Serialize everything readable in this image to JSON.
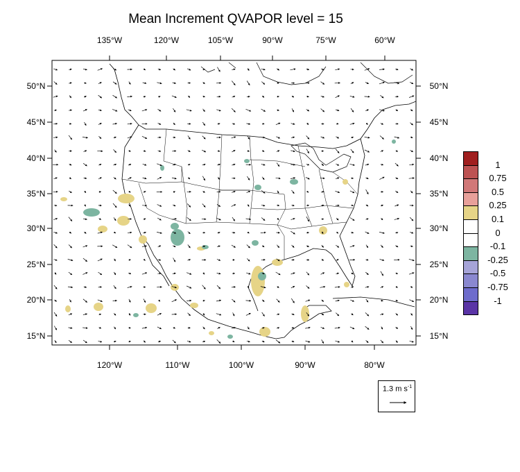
{
  "title": "Mean Increment QVAPOR level = 15",
  "map": {
    "top_longitudes": [
      "135°W",
      "120°W",
      "105°W",
      "90°W",
      "75°W",
      "60°W"
    ],
    "bottom_longitudes": [
      "120°W",
      "110°W",
      "100°W",
      "90°W",
      "80°W"
    ],
    "latitudes": [
      "50°N",
      "45°N",
      "40°N",
      "35°N",
      "30°N",
      "25°N",
      "20°N",
      "15°N"
    ],
    "region": "contiguous United States, Mexico, southern Canada"
  },
  "colorbar": {
    "labels": [
      "1",
      "0.75",
      "0.5",
      "0.25",
      "0.1",
      "0",
      "-0.1",
      "-0.25",
      "-0.5",
      "-0.75",
      "-1"
    ],
    "colors": [
      "#a01f1f",
      "#bd5252",
      "#d17878",
      "#e8a09a",
      "#e6d487",
      "#ffffff",
      "#ffffff",
      "#7db5a1",
      "#a6a4d8",
      "#8a88d0",
      "#6e6ccc",
      "#5a34a6"
    ]
  },
  "reference_vector": {
    "label": "1.3 m s-1",
    "value": "1.3",
    "unit": "m s",
    "exponent": "-1"
  }
}
